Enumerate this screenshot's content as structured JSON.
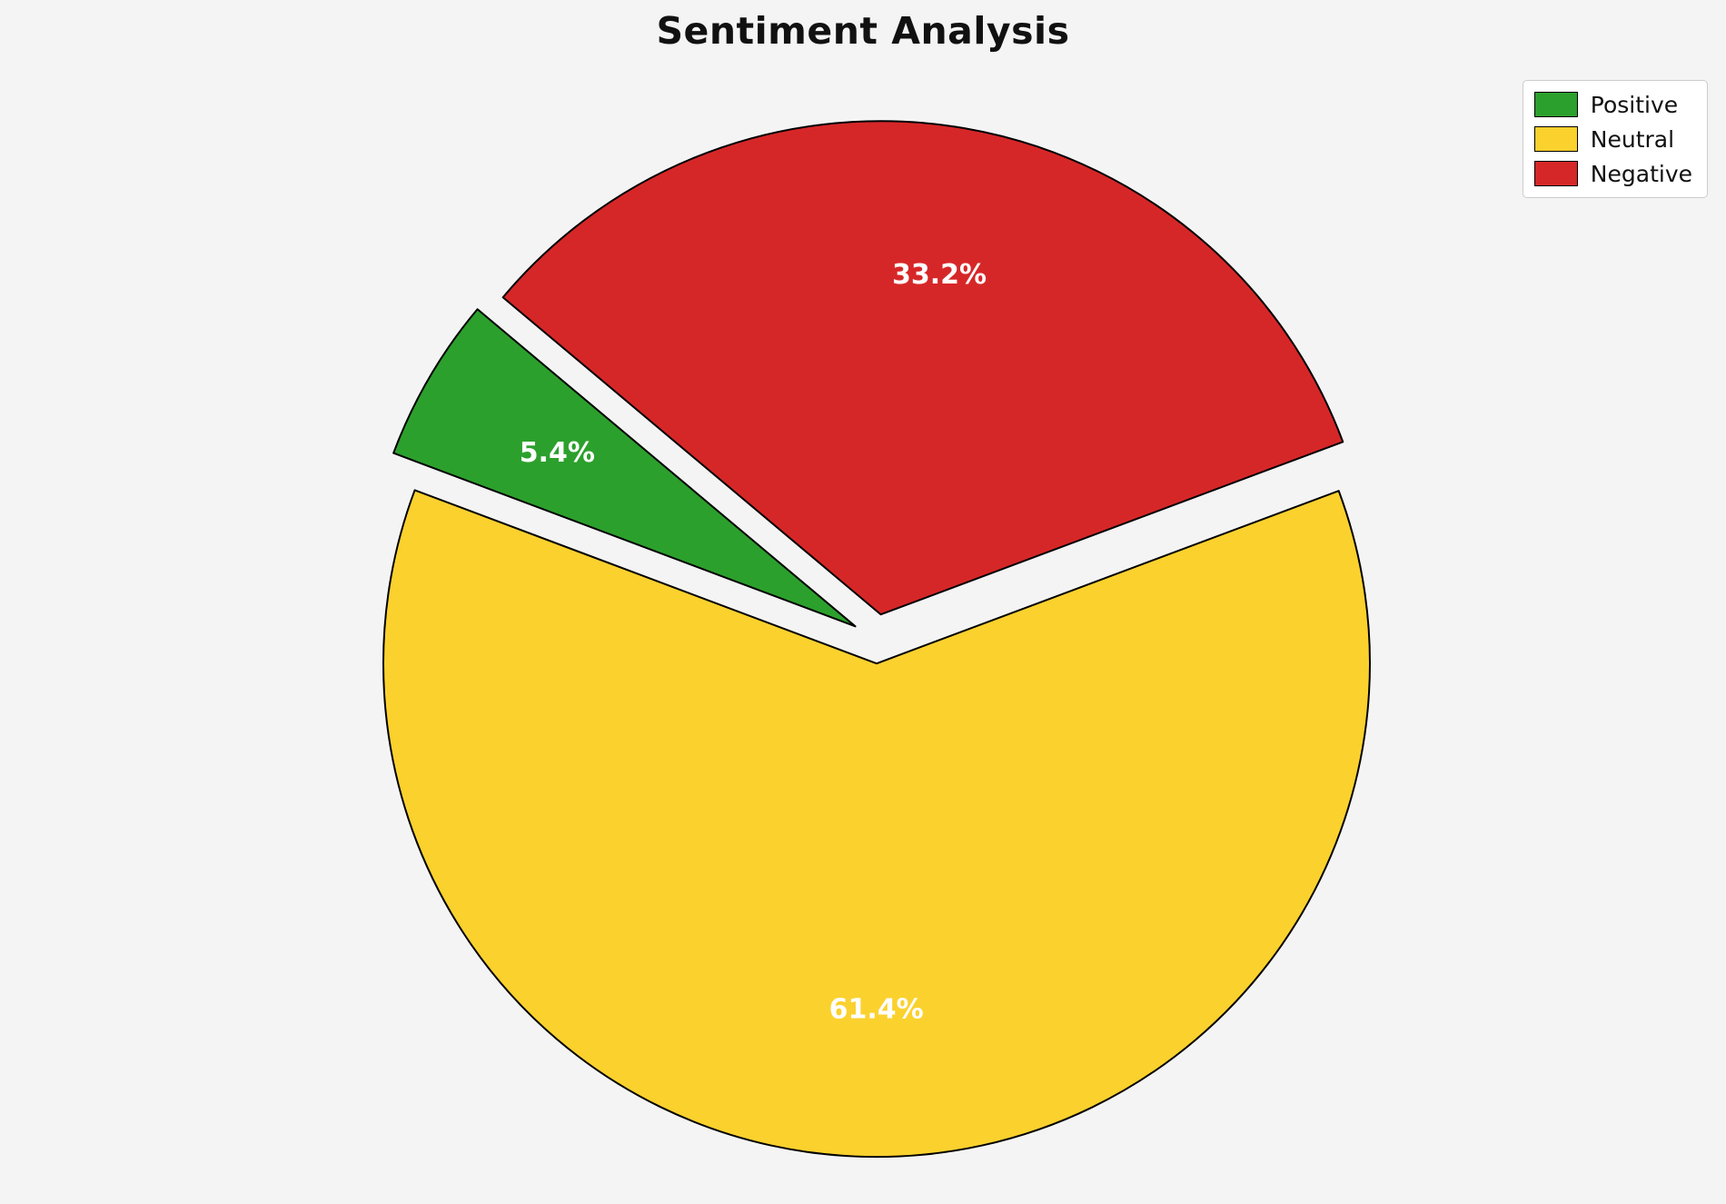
{
  "chart_data": {
    "type": "pie",
    "title": "Sentiment Analysis",
    "labels": [
      "Positive",
      "Neutral",
      "Negative"
    ],
    "values": [
      5.4,
      61.4,
      33.2
    ],
    "pct_labels": [
      "5.4%",
      "61.4%",
      "33.2%"
    ],
    "colors": [
      "#2CA02C",
      "#FBD12E",
      "#D62728"
    ],
    "explode": [
      0.05,
      0.05,
      0.05
    ],
    "startangle": 140,
    "counterclockwise": true,
    "pctdistance": 0.7,
    "edge_color": "#000000",
    "pct_label_color": "#FFFFFF",
    "background": "#F4F4F5",
    "legend": {
      "position": "upper right"
    }
  }
}
